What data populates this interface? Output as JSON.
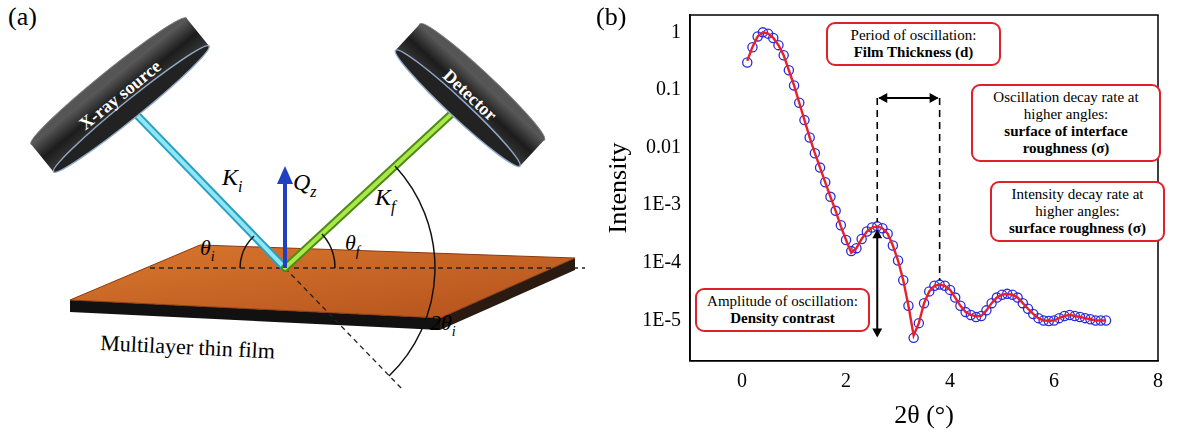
{
  "panel_labels": [
    "(a)",
    "(b)"
  ],
  "diagram": {
    "source": "X-ray source",
    "detector": "Detector",
    "sample": "Multilayer thin film",
    "vectors": {
      "incident": {
        "symbol": "K",
        "subscript": "i"
      },
      "scattered": {
        "symbol": "K",
        "subscript": "f"
      },
      "transfer": {
        "symbol": "Q",
        "subscript": "z"
      }
    },
    "angles": {
      "incident": {
        "symbol": "θ",
        "subscript": "i"
      },
      "exit": {
        "symbol": "θ",
        "subscript": "f"
      },
      "scattering": {
        "symbol": "2θ",
        "subscript": "i"
      }
    }
  },
  "chart_data": {
    "type": "scatter",
    "x_label": "2θ (°)",
    "y_label": "Intensity",
    "x": [
      0.1,
      0.2,
      0.3,
      0.4,
      0.5,
      0.6,
      0.7,
      0.8,
      0.9,
      1.0,
      1.1,
      1.2,
      1.3,
      1.4,
      1.5,
      1.6,
      1.7,
      1.8,
      1.9,
      2.0,
      2.1,
      2.2,
      2.3,
      2.4,
      2.5,
      2.6,
      2.7,
      2.8,
      2.9,
      3.0,
      3.1,
      3.2,
      3.3,
      3.4,
      3.5,
      3.6,
      3.7,
      3.8,
      3.9,
      4.0,
      4.1,
      4.2,
      4.3,
      4.4,
      4.5,
      4.6,
      4.7,
      4.8,
      4.9,
      5.0,
      5.1,
      5.2,
      5.3,
      5.4,
      5.5,
      5.6,
      5.7,
      5.8,
      5.9,
      6.0,
      6.1,
      6.2,
      6.3,
      6.4,
      6.5,
      6.6,
      6.7,
      6.8,
      6.9,
      7.0
    ],
    "series": [
      {
        "type": "scatter",
        "color": "#2b2bd9",
        "marker": "open_circle",
        "values": [
          0.3,
          0.55,
          0.85,
          1.0,
          0.95,
          0.8,
          0.6,
          0.4,
          0.22,
          0.12,
          0.06,
          0.03,
          0.015,
          0.008,
          0.0045,
          0.0025,
          0.0014,
          0.0008,
          0.00045,
          0.00025,
          0.00016,
          0.00018,
          0.00026,
          0.00035,
          0.00041,
          0.00043,
          0.0004,
          0.00032,
          0.0002,
          0.00011,
          5e-05,
          1.8e-05,
          5e-06,
          9e-06,
          2e-05,
          3.2e-05,
          4e-05,
          4.2e-05,
          4e-05,
          3.4e-05,
          2.5e-05,
          1.8e-05,
          1.4e-05,
          1.25e-05,
          1.15e-05,
          1.2e-05,
          1.5e-05,
          2e-05,
          2.5e-05,
          2.8e-05,
          2.9e-05,
          2.8e-05,
          2.5e-05,
          2e-05,
          1.6e-05,
          1.3e-05,
          1.1e-05,
          1e-05,
          9.8e-06,
          1e-05,
          1.1e-05,
          1.2e-05,
          1.25e-05,
          1.2e-05,
          1.15e-05,
          1.1e-05,
          1.05e-05,
          1e-05,
          1e-05,
          1e-05
        ]
      },
      {
        "type": "line",
        "color": "#e8202a",
        "line_style": "solid",
        "values": [
          0.32,
          0.56,
          0.85,
          1.0,
          0.95,
          0.8,
          0.6,
          0.4,
          0.22,
          0.12,
          0.06,
          0.03,
          0.015,
          0.008,
          0.0045,
          0.0025,
          0.0014,
          0.0008,
          0.00043,
          0.00025,
          0.00015,
          0.00018,
          0.00026,
          0.00035,
          0.00041,
          0.00043,
          0.0004,
          0.00032,
          0.0002,
          0.00011,
          5e-05,
          1.8e-05,
          5.5e-06,
          9e-06,
          2e-05,
          3.2e-05,
          4e-05,
          4.2e-05,
          4e-05,
          3.4e-05,
          2.5e-05,
          1.8e-05,
          1.4e-05,
          1.25e-05,
          1.18e-05,
          1.2e-05,
          1.5e-05,
          2e-05,
          2.5e-05,
          2.8e-05,
          2.9e-05,
          2.8e-05,
          2.5e-05,
          2e-05,
          1.6e-05,
          1.3e-05,
          1.1e-05,
          1e-05,
          9.9e-06,
          1e-05,
          1.1e-05,
          1.2e-05,
          1.25e-05,
          1.2e-05,
          1.15e-05,
          1.1e-05,
          1.05e-05,
          1e-05,
          1e-05,
          1e-05
        ]
      }
    ],
    "xlim": [
      -1,
      8
    ],
    "xticks": [
      0,
      2,
      4,
      6,
      8
    ],
    "ylim": [
      2e-06,
      2
    ],
    "yticks": [
      {
        "value": 1e-05,
        "label": "1E-5"
      },
      {
        "value": 0.0001,
        "label": "1E-4"
      },
      {
        "value": 0.001,
        "label": "1E-3"
      },
      0.01,
      0.1,
      1
    ],
    "log": "y",
    "grid": false,
    "annotations": [
      {
        "text": "Period of oscillation:",
        "emphasis": "Film Thickness (d)"
      },
      {
        "text": "Oscillation decay rate at higher angles:",
        "emphasis": "surface of interface roughness (σ)"
      },
      {
        "text": "Intensity decay rate at higher angles:",
        "emphasis": "surface roughness (σ)"
      },
      {
        "text": "Amplitude of oscillation:",
        "emphasis": "Density contrast"
      }
    ]
  }
}
